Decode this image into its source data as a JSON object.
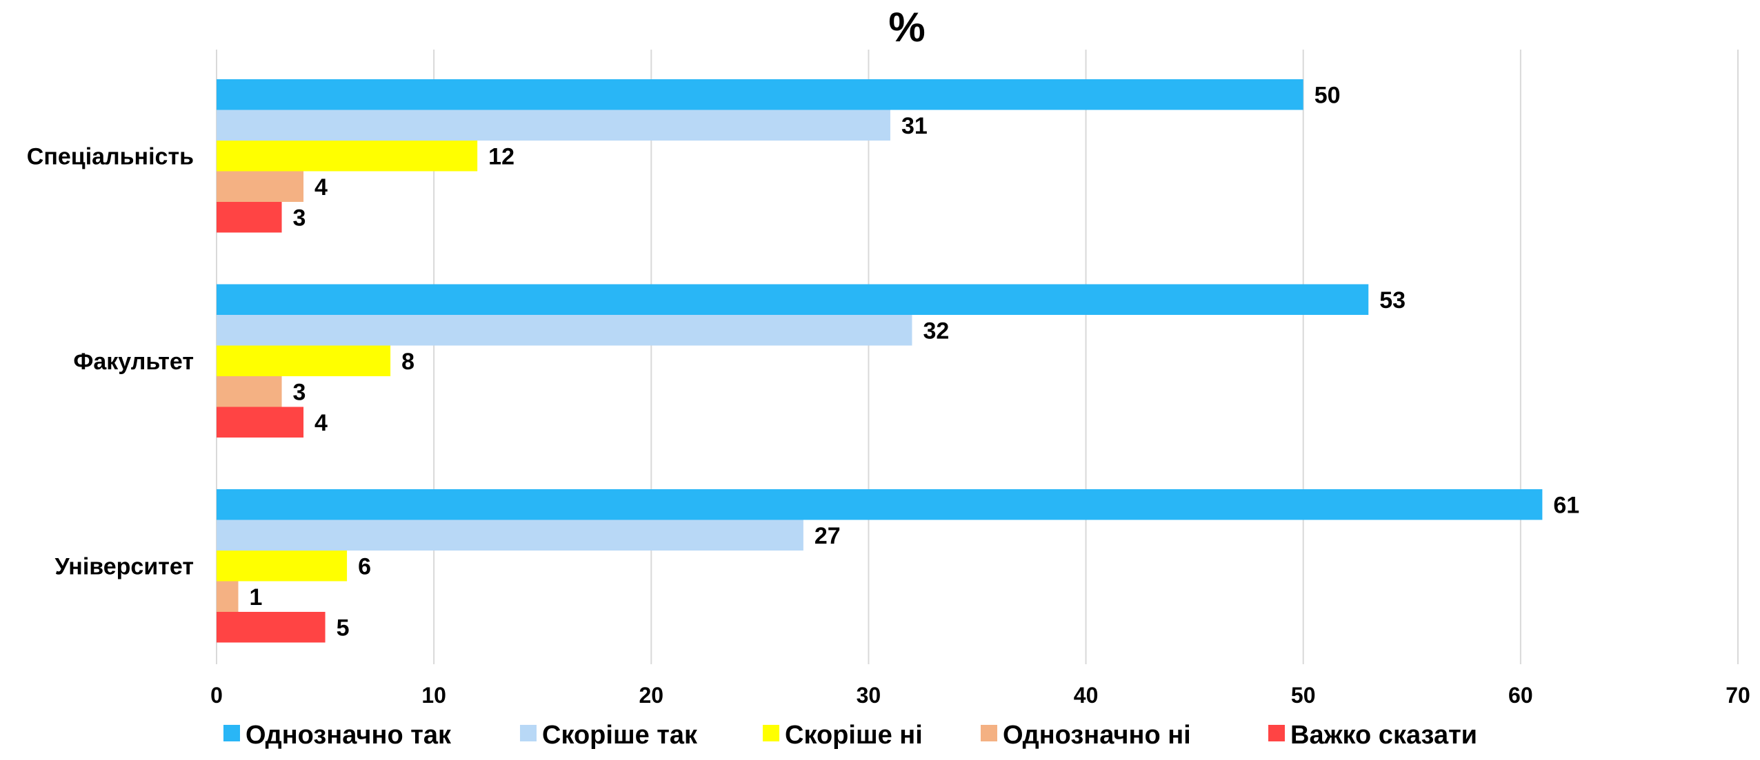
{
  "chart_data": {
    "type": "bar",
    "orientation": "horizontal",
    "title": "%",
    "categories": [
      "Спеціальність",
      "Факультет",
      "Університет"
    ],
    "series": [
      {
        "name": "Однозначно так",
        "color": "#29B6F6",
        "values": [
          50,
          53,
          61
        ]
      },
      {
        "name": "Скоріше так",
        "color": "#B8D8F6",
        "values": [
          31,
          32,
          27
        ]
      },
      {
        "name": "Скоріше ні",
        "color": "#FFFF00",
        "values": [
          12,
          8,
          6
        ]
      },
      {
        "name": "Однозначно ні",
        "color": "#F4B183",
        "values": [
          4,
          3,
          1
        ]
      },
      {
        "name": "Важко сказати",
        "color": "#FF4444",
        "values": [
          3,
          4,
          5
        ]
      }
    ],
    "xlim": [
      0,
      70
    ],
    "xticks": [
      0,
      10,
      20,
      30,
      40,
      50,
      60,
      70
    ],
    "grid": true,
    "legend": "bottom",
    "data_labels": true
  }
}
